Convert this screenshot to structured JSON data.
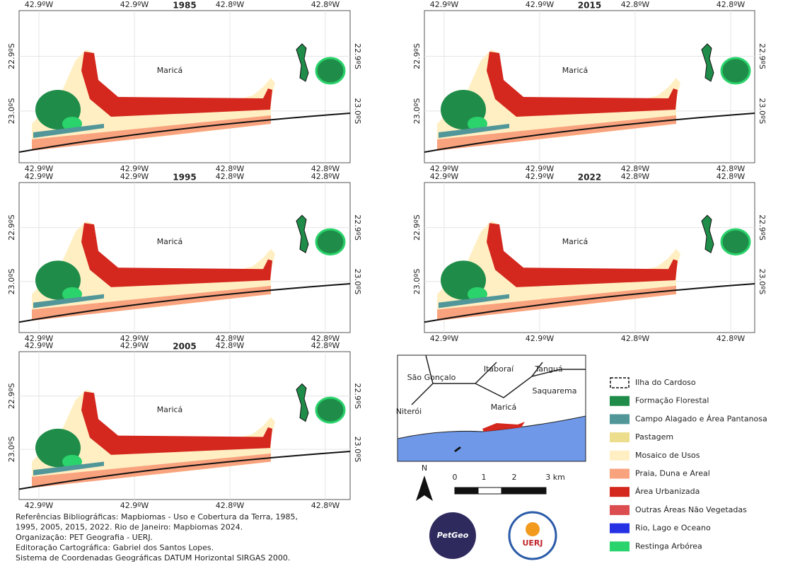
{
  "panels": [
    {
      "title": "1985",
      "place": "Maricá",
      "top_labels": [
        "42.9ºW",
        "42.9ºW",
        "42.8ºW",
        "42.8ºW"
      ],
      "bottom_labels": [
        "42.9ºW",
        "42.9ºW",
        "42.8ºW",
        "42.8ºW"
      ],
      "left_labels": [
        "22.9ºS",
        "23.0ºS"
      ],
      "right_labels": [
        "22.9ºS",
        "23.0ºS"
      ]
    },
    {
      "title": "2015",
      "place": "Maricá",
      "top_labels": [
        "42.9ºW",
        "42.9ºW",
        "42.8ºW",
        "42.8ºW"
      ],
      "bottom_labels": [
        "42.9ºW",
        "42.9ºW",
        "42.8ºW",
        "42.8ºW"
      ],
      "left_labels": [
        "22.9ºS",
        "23.0ºS"
      ],
      "right_labels": [
        "22.9ºS",
        "23.0ºS"
      ]
    },
    {
      "title": "1995",
      "place": "Maricá",
      "top_labels": [
        "42.9ºW",
        "42.9ºW",
        "42.8ºW",
        "42.8ºW"
      ],
      "bottom_labels": [
        "42.9ºW",
        "42.9ºW",
        "42.8ºW",
        "42.8ºW"
      ],
      "left_labels": [
        "22.9ºS",
        "23.0ºS"
      ],
      "right_labels": [
        "22.9ºS",
        "23.0ºS"
      ]
    },
    {
      "title": "2022",
      "place": "Maricá",
      "top_labels": [
        "42.9ºW",
        "42.9ºW",
        "42.8ºW",
        "42.8ºW"
      ],
      "bottom_labels": [
        "42.9ºW",
        "42.9ºW",
        "42.8ºW",
        "42.8ºW"
      ],
      "left_labels": [
        "22.9ºS",
        "23.0ºS"
      ],
      "right_labels": [
        "22.9ºS",
        "23.0ºS"
      ]
    },
    {
      "title": "2005",
      "place": "Maricá",
      "top_labels": [
        "42.9ºW",
        "42.9ºW",
        "42.8ºW",
        "42.8ºW"
      ],
      "bottom_labels": [
        "42.9ºW",
        "42.9ºW",
        "42.8ºW",
        "42.8ºW"
      ],
      "left_labels": [
        "22.9ºS",
        "23.0ºS"
      ],
      "right_labels": [
        "22.9ºS",
        "23.0ºS"
      ]
    }
  ],
  "inset": {
    "labels": [
      "São Gonçalo",
      "Itaboraí",
      "Tanguá",
      "Saquarema",
      "Niterói",
      "Maricá"
    ]
  },
  "scale": {
    "north": "N",
    "labels": [
      "0",
      "1",
      "2",
      "3 km"
    ]
  },
  "legend": [
    {
      "label": "Ilha do Cardoso"
    },
    {
      "label": "Formação Florestal",
      "color": "#1f8d49"
    },
    {
      "label": "Campo Alagado e Área Pantanosa",
      "color": "#519799"
    },
    {
      "label": "Pastagem",
      "color": "#edde8e"
    },
    {
      "label": "Mosaico de Usos",
      "color": "#ffefc3"
    },
    {
      "label": "Praia, Duna e Areal",
      "color": "#f9a27e"
    },
    {
      "label": "Área Urbanizada",
      "color": "#d4271e"
    },
    {
      "label": "Outras Áreas Não Vegetadas",
      "color": "#db4d4f"
    },
    {
      "label": "Rio, Lago e Oceano",
      "color": "#2532e4"
    },
    {
      "label": "Restinga Arbórea",
      "color": "#2ad36b"
    }
  ],
  "credits": [
    "Referências Bibliográficas: Mapbiomas - Uso e Cobertura da Terra, 1985,",
    "1995, 2005, 2015, 2022. Rio de Janeiro: Mapbiomas 2024.",
    "Organização: PET Geografia - UERJ.",
    "Editoração Cartográfica: Gabriel dos Santos Lopes.",
    "Sistema de Coordenadas Geográficas DATUM Horizontal SIRGAS 2000."
  ],
  "logos": [
    "PetGeo",
    "UERJ"
  ]
}
